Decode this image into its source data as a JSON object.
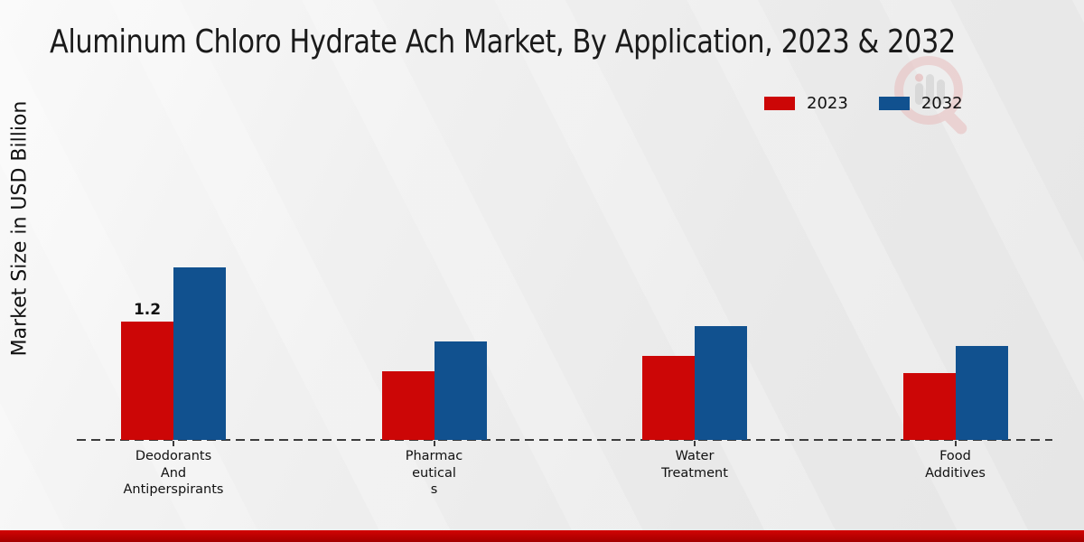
{
  "title": "Aluminum Chloro Hydrate Ach Market, By Application, 2023 & 2032",
  "y_axis_label": "Market Size in USD Billion",
  "legend": {
    "position": "top-right",
    "items": [
      {
        "label": "2023",
        "color": "#cc0606"
      },
      {
        "label": "2032",
        "color": "#11518f"
      }
    ]
  },
  "watermark": {
    "icon": "magnifier-bar-chart-logo",
    "ring_color": "#e8b9b9",
    "bar_color": "#c9c9c9"
  },
  "chart_data": {
    "type": "bar",
    "title": "Aluminum Chloro Hydrate Ach Market, By Application, 2023 & 2032",
    "xlabel": "",
    "ylabel": "Market Size in USD Billion",
    "categories": [
      "Deodorants And Antiperspirants",
      "Pharmaceuticals",
      "Water Treatment",
      "Food Additives"
    ],
    "category_label_lines": [
      [
        "Deodorants",
        "And",
        "Antiperspirants"
      ],
      [
        "Pharmac",
        "eutical",
        "s"
      ],
      [
        "Water",
        "Treatment"
      ],
      [
        "Food",
        "Additives"
      ]
    ],
    "series": [
      {
        "name": "2023",
        "color": "#cc0606",
        "values": [
          1.2,
          0.7,
          0.85,
          0.68
        ]
      },
      {
        "name": "2032",
        "color": "#11518f",
        "values": [
          1.75,
          1.0,
          1.15,
          0.95
        ]
      }
    ],
    "bar_value_labels": [
      [
        "1.2",
        "",
        "",
        ""
      ],
      [
        "",
        "",
        "",
        ""
      ]
    ],
    "grid": false,
    "y_axis_ticks_visible": false,
    "baseline_style": "dashed",
    "legend_position": "top-right"
  },
  "colors": {
    "background": "#ececec",
    "axis_line": "#3c3c3c",
    "footer_bar": "#bd0101"
  }
}
